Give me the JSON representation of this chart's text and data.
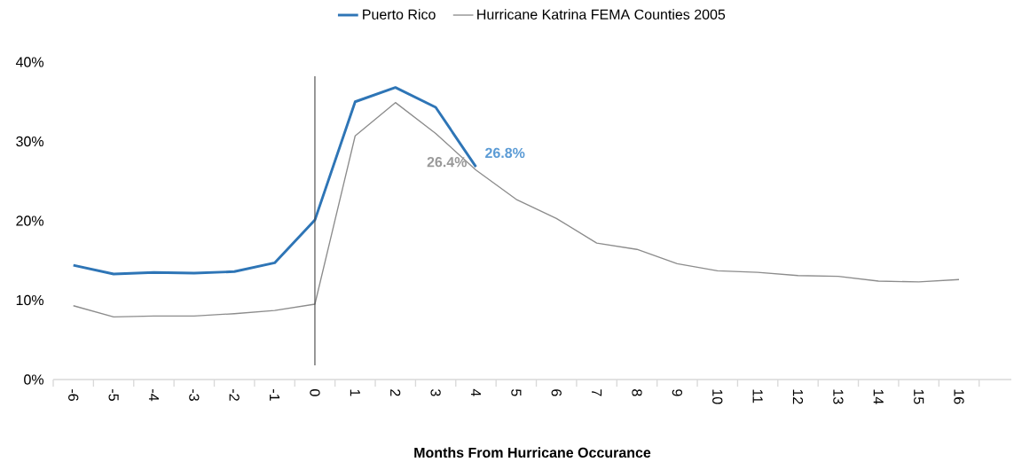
{
  "chart_data": {
    "type": "line",
    "xlabel": "Months From Hurricane Occurance",
    "categories": [
      "-6",
      "-5",
      "-4",
      "-3",
      "-2",
      "-1",
      "0",
      "1",
      "2",
      "3",
      "4",
      "5",
      "6",
      "7",
      "8",
      "9",
      "10",
      "11",
      "12",
      "13",
      "14",
      "15",
      "16"
    ],
    "series": [
      {
        "name": "Puerto Rico",
        "color": "#2e75b6",
        "values": [
          14.4,
          13.3,
          13.5,
          13.4,
          13.6,
          14.7,
          20.1,
          35.0,
          36.8,
          34.3,
          26.8,
          null,
          null,
          null,
          null,
          null,
          null,
          null,
          null,
          null,
          null,
          null,
          null
        ]
      },
      {
        "name": "Hurricane Katrina FEMA Counties 2005",
        "color": "#8c8c8c",
        "values": [
          9.3,
          7.9,
          8.0,
          8.0,
          8.3,
          8.7,
          9.5,
          30.7,
          34.9,
          31.0,
          26.4,
          22.7,
          20.3,
          17.2,
          16.4,
          14.6,
          13.7,
          13.5,
          13.1,
          13.0,
          12.4,
          12.3,
          12.6
        ]
      }
    ],
    "ylim": [
      0,
      40
    ],
    "yticks": [
      {
        "value": 0,
        "label": "0%"
      },
      {
        "value": 10,
        "label": "10%"
      },
      {
        "value": 20,
        "label": "20%"
      },
      {
        "value": 30,
        "label": "30%"
      },
      {
        "value": 40,
        "label": "40%"
      }
    ],
    "ref_lines": [
      {
        "axis": "x",
        "value": "0",
        "color": "#404040"
      }
    ],
    "annotations": [
      {
        "text": "26.8%",
        "x": "4",
        "y": 26.8
      },
      {
        "text": "26.4%",
        "x": "4",
        "y": 26.4
      }
    ],
    "legend": "top",
    "grid": false,
    "marker": "none",
    "line_style": "solid"
  }
}
